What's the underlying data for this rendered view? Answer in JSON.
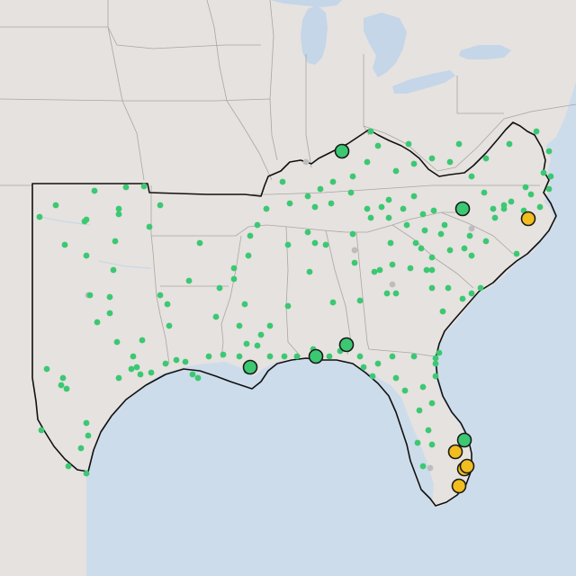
{
  "map": {
    "colors": {
      "land": "#e6e2df",
      "water": "#cddcea",
      "region_outline": "#111111",
      "state_border": "#a9a6a3",
      "small_station": "#3cc872",
      "large_station": "#3cc872",
      "alert_station": "#f1bd1f",
      "inactive_station": "#bdbdbd",
      "marker_stroke": "#1a1a1a"
    },
    "marker_kinds": [
      "small_station",
      "large_station",
      "alert_station",
      "inactive_station"
    ]
  }
}
